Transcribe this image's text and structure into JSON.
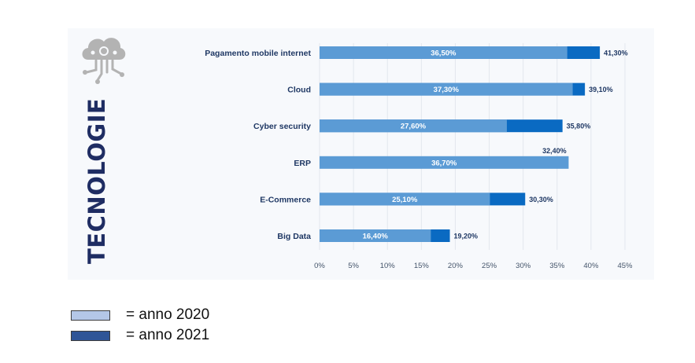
{
  "side_title": "TECNOLOGIE",
  "logo_icon": "cloud-circuit-icon",
  "colors": {
    "bar_2020": "#5b9bd5",
    "bar_2021": "#0a6ac2",
    "label_dark": "#1f3864",
    "title": "#1f2d63",
    "legend_2020": "#b4c7e7",
    "legend_2021": "#2f5597"
  },
  "legend": [
    {
      "label": "= anno 2020",
      "color": "#b4c7e7"
    },
    {
      "label": "= anno 2021",
      "color": "#2f5597"
    }
  ],
  "chart_data": {
    "type": "bar",
    "orientation": "horizontal",
    "title": "",
    "xlabel": "",
    "ylabel": "",
    "xlim": [
      0,
      45
    ],
    "grid": true,
    "x_ticks": [
      "0%",
      "5%",
      "10%",
      "15%",
      "20%",
      "25%",
      "30%",
      "35%",
      "40%",
      "45%"
    ],
    "x_tick_values": [
      0,
      5,
      10,
      15,
      20,
      25,
      30,
      35,
      40,
      45
    ],
    "categories": [
      "Pagamento mobile internet",
      "Cloud",
      "Cyber security",
      "ERP",
      "E-Commerce",
      "Big Data"
    ],
    "series": [
      {
        "name": "anno 2020",
        "values": [
          36.5,
          37.3,
          27.6,
          36.7,
          25.1,
          16.4
        ],
        "labels": [
          "36,50%",
          "37,30%",
          "27,60%",
          "36,70%",
          "25,10%",
          "16,40%"
        ]
      },
      {
        "name": "anno 2021",
        "values": [
          41.3,
          39.1,
          35.8,
          32.4,
          30.3,
          19.2
        ],
        "labels": [
          "41,30%",
          "39,10%",
          "35,80%",
          "32,40%",
          "30,30%",
          "19,20%"
        ]
      }
    ],
    "legend_position": "bottom-left"
  }
}
